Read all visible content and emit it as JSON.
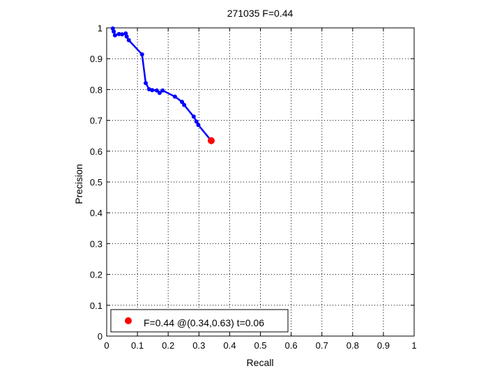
{
  "chart_data": {
    "type": "line",
    "title": "271035 F=0.44",
    "xlabel": "Recall",
    "ylabel": "Precision",
    "xlim": [
      0,
      1
    ],
    "ylim": [
      0,
      1
    ],
    "grid": true,
    "x_ticks": [
      "0",
      "0.1",
      "0.2",
      "0.3",
      "0.4",
      "0.5",
      "0.6",
      "0.7",
      "0.8",
      "0.9",
      "1"
    ],
    "y_ticks": [
      "0",
      "0.1",
      "0.2",
      "0.3",
      "0.4",
      "0.5",
      "0.6",
      "0.7",
      "0.8",
      "0.9",
      "1"
    ],
    "legend_position": "bottom-left",
    "series": [
      {
        "color": "#0000ff",
        "x": [
          0.02,
          0.023,
          0.027,
          0.04,
          0.05,
          0.062,
          0.065,
          0.072,
          0.115,
          0.127,
          0.138,
          0.148,
          0.163,
          0.172,
          0.182,
          0.222,
          0.245,
          0.252,
          0.283,
          0.292,
          0.298,
          0.34
        ],
        "y": [
          0.998,
          0.988,
          0.976,
          0.98,
          0.979,
          0.982,
          0.972,
          0.96,
          0.914,
          0.821,
          0.801,
          0.798,
          0.797,
          0.789,
          0.797,
          0.777,
          0.76,
          0.75,
          0.712,
          0.696,
          0.685,
          0.634
        ]
      },
      {
        "name": "F=0.44 @(0.34,0.63) t=0.06",
        "color": "#ff0000",
        "x": [
          0.34
        ],
        "y": [
          0.634
        ]
      }
    ]
  }
}
